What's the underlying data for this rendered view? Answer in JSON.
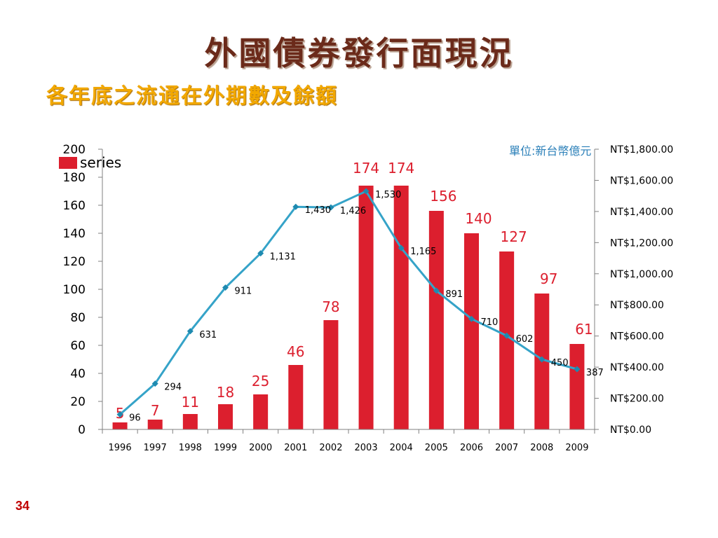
{
  "slide": {
    "title": "外國債券發行面現況",
    "subtitle": "各年底之流通在外期數及餘額",
    "page_number": "34",
    "unit_note": "單位:新台幣億元"
  },
  "colors": {
    "bar": "#dc1f2e",
    "bar_label": "#dc1f2e",
    "line": "#35a3c8",
    "marker": "#1e8ab0",
    "axis": "#808080"
  },
  "chart_data": {
    "type": "bar",
    "categories": [
      "1996",
      "1997",
      "1998",
      "1999",
      "2000",
      "2001",
      "2002",
      "2003",
      "2004",
      "2005",
      "2006",
      "2007",
      "2008",
      "2009"
    ],
    "series": [
      {
        "name": "series",
        "type": "bar",
        "axis": "left",
        "values": [
          5,
          7,
          11,
          18,
          25,
          46,
          78,
          174,
          174,
          156,
          140,
          127,
          97,
          61
        ],
        "labels": [
          "5",
          "7",
          "11",
          "18",
          "25",
          "46",
          "78",
          "174",
          "174",
          "156",
          "140",
          "127",
          "97",
          "61"
        ]
      },
      {
        "name": "",
        "type": "line",
        "axis": "right",
        "values": [
          96,
          294,
          631,
          911,
          1131,
          1430,
          1426,
          1530,
          1165,
          891,
          710,
          602,
          450,
          387
        ],
        "labels": [
          "96",
          "294",
          "631",
          "911",
          "1,131",
          "1,430",
          "1,426",
          "1,530",
          "1,165",
          "891",
          "710",
          "602",
          "450",
          "387"
        ]
      }
    ],
    "left_axis": {
      "ylim": [
        0,
        200
      ],
      "ticks": [
        "0",
        "20",
        "40",
        "60",
        "80",
        "100",
        "120",
        "140",
        "160",
        "180",
        "200"
      ]
    },
    "right_axis": {
      "ylim": [
        0,
        1800
      ],
      "ticks": [
        "NT$0.00",
        "NT$200.00",
        "NT$400.00",
        "NT$600.00",
        "NT$800.00",
        "NT$1,000.00",
        "NT$1,200.00",
        "NT$1,400.00",
        "NT$1,600.00",
        "NT$1,800.00"
      ]
    },
    "legend": {
      "position": "top-left",
      "label": "series"
    },
    "grid": false
  }
}
